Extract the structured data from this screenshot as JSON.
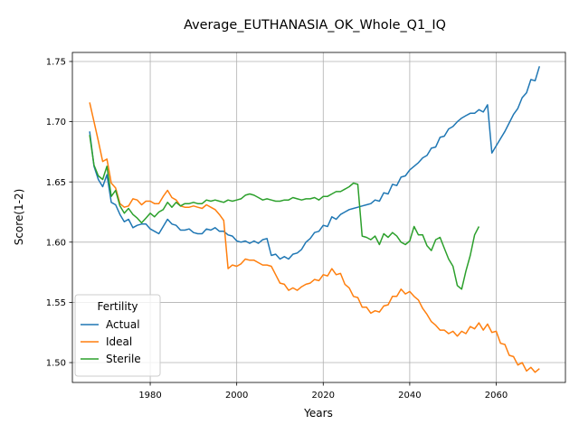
{
  "chart_data": {
    "type": "line",
    "title": "Average_EUTHANASIA_OK_Whole_Q1_IQ",
    "xlabel": "Years",
    "ylabel": "Score(1-2)",
    "xlim": [
      1962,
      2076
    ],
    "ylim": [
      1.4835,
      1.7575
    ],
    "xticks": [
      1980,
      2000,
      2020,
      2040,
      2060
    ],
    "xtick_labels": [
      "1980",
      "2000",
      "2020",
      "2040",
      "2060"
    ],
    "yticks": [
      1.5,
      1.55,
      1.6,
      1.65,
      1.7,
      1.75
    ],
    "ytick_labels": [
      "1.50",
      "1.55",
      "1.60",
      "1.65",
      "1.70",
      "1.75"
    ],
    "grid": true,
    "legend": {
      "title": "Fertility",
      "placement": "lower-left"
    },
    "series": [
      {
        "name": "Actual",
        "color": "#1f77b4",
        "x": [
          1966,
          1967,
          1968,
          1969,
          1970,
          1971,
          1972,
          1973,
          1974,
          1975,
          1976,
          1977,
          1978,
          1979,
          1980,
          1981,
          1982,
          1983,
          1984,
          1985,
          1986,
          1987,
          1988,
          1989,
          1990,
          1991,
          1992,
          1993,
          1994,
          1995,
          1996,
          1997,
          1998,
          1999,
          2000,
          2001,
          2002,
          2003,
          2004,
          2005,
          2006,
          2007,
          2008,
          2009,
          2010,
          2011,
          2012,
          2013,
          2014,
          2015,
          2016,
          2017,
          2018,
          2019,
          2020,
          2021,
          2022,
          2023,
          2024,
          2025,
          2026,
          2027,
          2028,
          2029,
          2030,
          2031,
          2032,
          2033,
          2034,
          2035,
          2036,
          2037,
          2038,
          2039,
          2040,
          2041,
          2042,
          2043,
          2044,
          2045,
          2046,
          2047,
          2048,
          2049,
          2050,
          2051,
          2052,
          2053,
          2054,
          2055,
          2056,
          2057,
          2058,
          2059,
          2060,
          2061,
          2062,
          2063,
          2064,
          2065,
          2066,
          2067,
          2068,
          2069,
          2070
        ],
        "y": [
          1.692,
          1.663,
          1.652,
          1.646,
          1.656,
          1.633,
          1.631,
          1.623,
          1.617,
          1.619,
          1.612,
          1.614,
          1.615,
          1.615,
          1.611,
          1.609,
          1.607,
          1.613,
          1.619,
          1.615,
          1.614,
          1.61,
          1.61,
          1.611,
          1.608,
          1.607,
          1.607,
          1.611,
          1.61,
          1.612,
          1.609,
          1.609,
          1.606,
          1.605,
          1.601,
          1.6,
          1.601,
          1.599,
          1.601,
          1.599,
          1.602,
          1.603,
          1.589,
          1.59,
          1.586,
          1.588,
          1.586,
          1.59,
          1.591,
          1.594,
          1.6,
          1.603,
          1.608,
          1.609,
          1.614,
          1.613,
          1.621,
          1.619,
          1.623,
          1.625,
          1.627,
          1.628,
          1.629,
          1.63,
          1.631,
          1.632,
          1.635,
          1.634,
          1.641,
          1.64,
          1.648,
          1.647,
          1.654,
          1.655,
          1.66,
          1.663,
          1.666,
          1.67,
          1.672,
          1.678,
          1.679,
          1.687,
          1.688,
          1.694,
          1.696,
          1.7,
          1.703,
          1.705,
          1.707,
          1.707,
          1.71,
          1.708,
          1.714,
          1.674,
          1.68,
          1.686,
          1.692,
          1.699,
          1.706,
          1.711,
          1.72,
          1.724,
          1.735,
          1.734,
          1.746
        ]
      },
      {
        "name": "Ideal",
        "color": "#ff7f0e",
        "x": [
          1966,
          1967,
          1968,
          1969,
          1970,
          1971,
          1972,
          1973,
          1974,
          1975,
          1976,
          1977,
          1978,
          1979,
          1980,
          1981,
          1982,
          1983,
          1984,
          1985,
          1986,
          1987,
          1988,
          1989,
          1990,
          1991,
          1992,
          1993,
          1994,
          1995,
          1996,
          1997,
          1998,
          1999,
          2000,
          2001,
          2002,
          2003,
          2004,
          2005,
          2006,
          2007,
          2008,
          2009,
          2010,
          2011,
          2012,
          2013,
          2014,
          2015,
          2016,
          2017,
          2018,
          2019,
          2020,
          2021,
          2022,
          2023,
          2024,
          2025,
          2026,
          2027,
          2028,
          2029,
          2030,
          2031,
          2032,
          2033,
          2034,
          2035,
          2036,
          2037,
          2038,
          2039,
          2040,
          2041,
          2042,
          2043,
          2044,
          2045,
          2046,
          2047,
          2048,
          2049,
          2050,
          2051,
          2052,
          2053,
          2054,
          2055,
          2056,
          2057,
          2058,
          2059,
          2060,
          2061,
          2062,
          2063,
          2064,
          2065,
          2066,
          2067,
          2068,
          2069,
          2070
        ],
        "y": [
          1.716,
          1.7,
          1.684,
          1.667,
          1.669,
          1.649,
          1.645,
          1.632,
          1.629,
          1.63,
          1.636,
          1.635,
          1.631,
          1.634,
          1.634,
          1.632,
          1.632,
          1.638,
          1.643,
          1.637,
          1.635,
          1.63,
          1.629,
          1.629,
          1.63,
          1.629,
          1.628,
          1.631,
          1.629,
          1.627,
          1.623,
          1.618,
          1.578,
          1.581,
          1.58,
          1.582,
          1.586,
          1.585,
          1.585,
          1.583,
          1.581,
          1.581,
          1.58,
          1.573,
          1.566,
          1.565,
          1.56,
          1.562,
          1.56,
          1.563,
          1.565,
          1.566,
          1.569,
          1.568,
          1.573,
          1.572,
          1.578,
          1.573,
          1.574,
          1.565,
          1.562,
          1.555,
          1.554,
          1.546,
          1.546,
          1.541,
          1.543,
          1.542,
          1.547,
          1.548,
          1.555,
          1.555,
          1.561,
          1.557,
          1.559,
          1.555,
          1.552,
          1.545,
          1.54,
          1.534,
          1.531,
          1.527,
          1.527,
          1.524,
          1.526,
          1.522,
          1.526,
          1.524,
          1.53,
          1.528,
          1.533,
          1.527,
          1.532,
          1.525,
          1.526,
          1.516,
          1.515,
          1.506,
          1.505,
          1.498,
          1.5,
          1.493,
          1.496,
          1.492,
          1.495
        ]
      },
      {
        "name": "Sterile",
        "color": "#2ca02c",
        "x": [
          1966,
          1967,
          1968,
          1969,
          1970,
          1971,
          1972,
          1973,
          1974,
          1975,
          1976,
          1977,
          1978,
          1979,
          1980,
          1981,
          1982,
          1983,
          1984,
          1985,
          1986,
          1987,
          1988,
          1989,
          1990,
          1991,
          1992,
          1993,
          1994,
          1995,
          1996,
          1997,
          1998,
          1999,
          2000,
          2001,
          2002,
          2003,
          2004,
          2005,
          2006,
          2007,
          2008,
          2009,
          2010,
          2011,
          2012,
          2013,
          2014,
          2015,
          2016,
          2017,
          2018,
          2019,
          2020,
          2021,
          2022,
          2023,
          2024,
          2025,
          2026,
          2027,
          2028,
          2029,
          2030,
          2031,
          2032,
          2033,
          2034,
          2035,
          2036,
          2037,
          2038,
          2039,
          2040,
          2041,
          2042,
          2043,
          2044,
          2045,
          2046,
          2047,
          2048,
          2049,
          2050,
          2051,
          2052,
          2053,
          2054,
          2055,
          2056
        ],
        "y": [
          1.689,
          1.664,
          1.655,
          1.652,
          1.663,
          1.638,
          1.643,
          1.63,
          1.624,
          1.628,
          1.623,
          1.62,
          1.616,
          1.62,
          1.624,
          1.621,
          1.625,
          1.627,
          1.633,
          1.629,
          1.633,
          1.63,
          1.632,
          1.632,
          1.633,
          1.632,
          1.632,
          1.635,
          1.634,
          1.635,
          1.634,
          1.633,
          1.635,
          1.634,
          1.635,
          1.636,
          1.639,
          1.64,
          1.639,
          1.637,
          1.635,
          1.636,
          1.635,
          1.634,
          1.634,
          1.635,
          1.635,
          1.637,
          1.636,
          1.635,
          1.636,
          1.636,
          1.637,
          1.635,
          1.638,
          1.638,
          1.64,
          1.642,
          1.642,
          1.644,
          1.646,
          1.649,
          1.648,
          1.605,
          1.604,
          1.602,
          1.605,
          1.598,
          1.607,
          1.604,
          1.608,
          1.605,
          1.6,
          1.598,
          1.601,
          1.613,
          1.606,
          1.606,
          1.597,
          1.593,
          1.602,
          1.604,
          1.595,
          1.586,
          1.58,
          1.564,
          1.561,
          1.576,
          1.589,
          1.606,
          1.613
        ]
      }
    ]
  }
}
